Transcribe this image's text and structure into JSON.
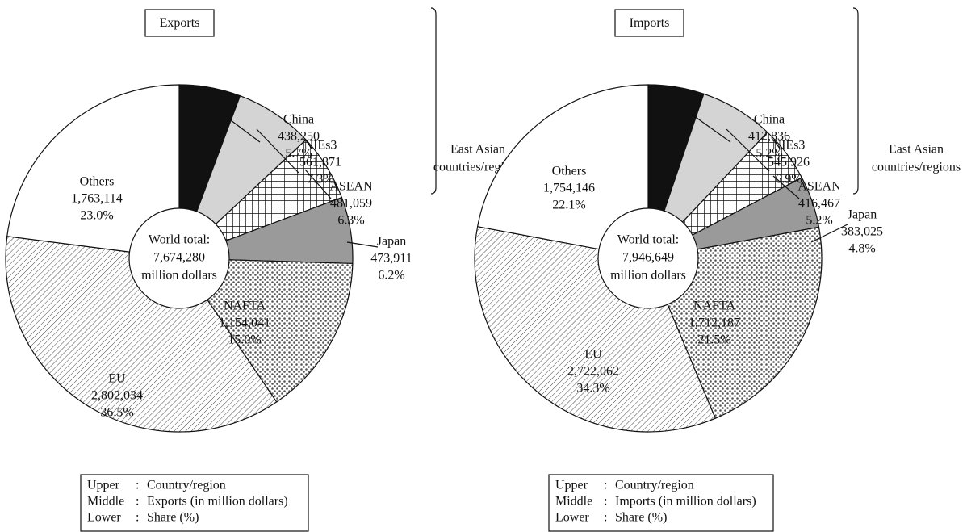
{
  "chart_data": [
    {
      "type": "pie",
      "title": "Exports",
      "categories": [
        "China",
        "NIEs3",
        "ASEAN",
        "Japan",
        "NAFTA",
        "EU",
        "Others"
      ],
      "values": [
        438250,
        561871,
        481059,
        473911,
        1154041,
        2802034,
        1763114
      ],
      "value_labels": [
        "438,250",
        "561,871",
        "481,059",
        "473,911",
        "1,154,041",
        "2,802,034",
        "1,763,114"
      ],
      "shares": [
        5.7,
        7.3,
        6.3,
        6.2,
        15.0,
        36.5,
        23.0
      ],
      "share_labels": [
        "5.7%",
        "7.3%",
        "6.3%",
        "6.2%",
        "15.0%",
        "36.5%",
        "23.0%"
      ],
      "colors": [
        "#111111",
        "#d4d4d4",
        "crosshatch",
        "#9a9a9a",
        "dots",
        "hatch",
        "#ffffff"
      ],
      "total": 7674280,
      "total_label": "7,674,280",
      "center_text": [
        "World total:",
        "million dollars"
      ],
      "group_label": [
        "East Asian",
        "countries/regions"
      ],
      "key": [
        [
          "Upper",
          "Country/region"
        ],
        [
          "Middle",
          "Exports (in million dollars)"
        ],
        [
          "Lower",
          "Share (%)"
        ]
      ]
    },
    {
      "type": "pie",
      "title": "Imports",
      "categories": [
        "China",
        "NIEs3",
        "ASEAN",
        "Japan",
        "NAFTA",
        "EU",
        "Others"
      ],
      "values": [
        412836,
        545926,
        416467,
        383025,
        1712187,
        2722062,
        1754146
      ],
      "value_labels": [
        "412,836",
        "545,926",
        "416,467",
        "383,025",
        "1,712,187",
        "2,722,062",
        "1,754,146"
      ],
      "shares": [
        5.2,
        6.9,
        5.2,
        4.8,
        21.5,
        34.3,
        22.1
      ],
      "share_labels": [
        "5.2%",
        "6.9%",
        "5.2%",
        "4.8%",
        "21.5%",
        "34.3%",
        "22.1%"
      ],
      "colors": [
        "#111111",
        "#d4d4d4",
        "crosshatch",
        "#9a9a9a",
        "dots",
        "hatch",
        "#ffffff"
      ],
      "total": 7946649,
      "total_label": "7,946,649",
      "center_text": [
        "World total:",
        "million dollars"
      ],
      "group_label": [
        "East Asian",
        "countries/regions"
      ],
      "key": [
        [
          "Upper",
          "Country/region"
        ],
        [
          "Middle",
          "Imports (in million dollars)"
        ],
        [
          "Lower",
          "Share (%)"
        ]
      ]
    }
  ]
}
